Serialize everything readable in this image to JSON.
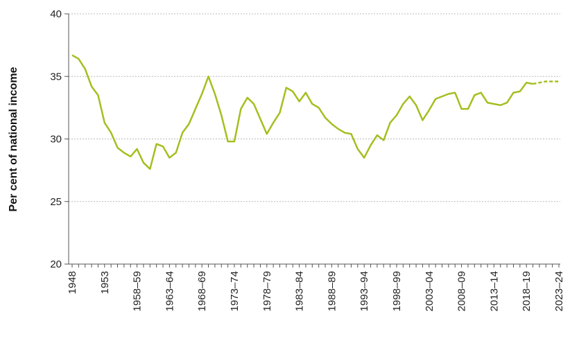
{
  "chart_data": {
    "type": "line",
    "title": "",
    "xlabel": "",
    "ylabel": "Per cent of national income",
    "ylim": [
      20,
      40
    ],
    "yticks": [
      20,
      25,
      30,
      35,
      40
    ],
    "grid": "horizontal dashed",
    "legend": "none",
    "x_tick_labels": [
      "1948",
      "1953",
      "1958–59",
      "1963–64",
      "1968–69",
      "1973–74",
      "1978–79",
      "1983–84",
      "1988–89",
      "1993–94",
      "1998–99",
      "2003–04",
      "2008–09",
      "2013–14",
      "2018–19",
      "2023–24"
    ],
    "line_color": "#a5be1f",
    "series": [
      {
        "style": "solid",
        "x": [
          "1948",
          "1949",
          "1950",
          "1951",
          "1952",
          "1953",
          "1954",
          "1955",
          "1956",
          "1957",
          "1958–59",
          "1959–60",
          "1960–61",
          "1961–62",
          "1962–63",
          "1963–64",
          "1964–65",
          "1965–66",
          "1966–67",
          "1967–68",
          "1968–69",
          "1969–70",
          "1970–71",
          "1971–72",
          "1972–73",
          "1973–74",
          "1974–75",
          "1975–76",
          "1976–77",
          "1977–78",
          "1978–79",
          "1979–80",
          "1980–81",
          "1981–82",
          "1982–83",
          "1983–84",
          "1984–85",
          "1985–86",
          "1986–87",
          "1987–88",
          "1988–89",
          "1989–90",
          "1990–91",
          "1991–92",
          "1992–93",
          "1993–94",
          "1994–95",
          "1995–96",
          "1996–97",
          "1997–98",
          "1998–99",
          "1999–00",
          "2000–01",
          "2001–02",
          "2002–03",
          "2003–04",
          "2004–05",
          "2005–06",
          "2006–07",
          "2007–08",
          "2008–09",
          "2009–10",
          "2010–11",
          "2011–12",
          "2012–13",
          "2013–14",
          "2014–15",
          "2015–16",
          "2016–17",
          "2017–18",
          "2018–19",
          "2019–20"
        ],
        "values": [
          36.7,
          36.4,
          35.6,
          34.2,
          33.5,
          31.3,
          30.5,
          29.3,
          28.9,
          28.6,
          29.2,
          28.1,
          27.6,
          29.6,
          29.4,
          28.5,
          28.9,
          30.5,
          31.2,
          32.4,
          33.6,
          35.0,
          33.6,
          31.9,
          29.8,
          29.8,
          32.4,
          33.3,
          32.8,
          31.6,
          30.4,
          31.3,
          32.1,
          34.1,
          33.8,
          33.0,
          33.7,
          32.8,
          32.5,
          31.7,
          31.2,
          30.8,
          30.5,
          30.4,
          29.2,
          28.5,
          29.5,
          30.3,
          29.9,
          31.3,
          31.9,
          32.8,
          33.4,
          32.7,
          31.5,
          32.3,
          33.2,
          33.4,
          33.6,
          33.7,
          32.4,
          32.4,
          33.5,
          33.7,
          32.9,
          32.8,
          32.7,
          32.9,
          33.7,
          33.8,
          34.5,
          34.4
        ]
      },
      {
        "style": "dashed",
        "x": [
          "2019–20",
          "2020–21",
          "2021–22",
          "2022–23",
          "2023–24"
        ],
        "values": [
          34.4,
          34.5,
          34.6,
          34.6,
          34.6
        ]
      }
    ]
  }
}
